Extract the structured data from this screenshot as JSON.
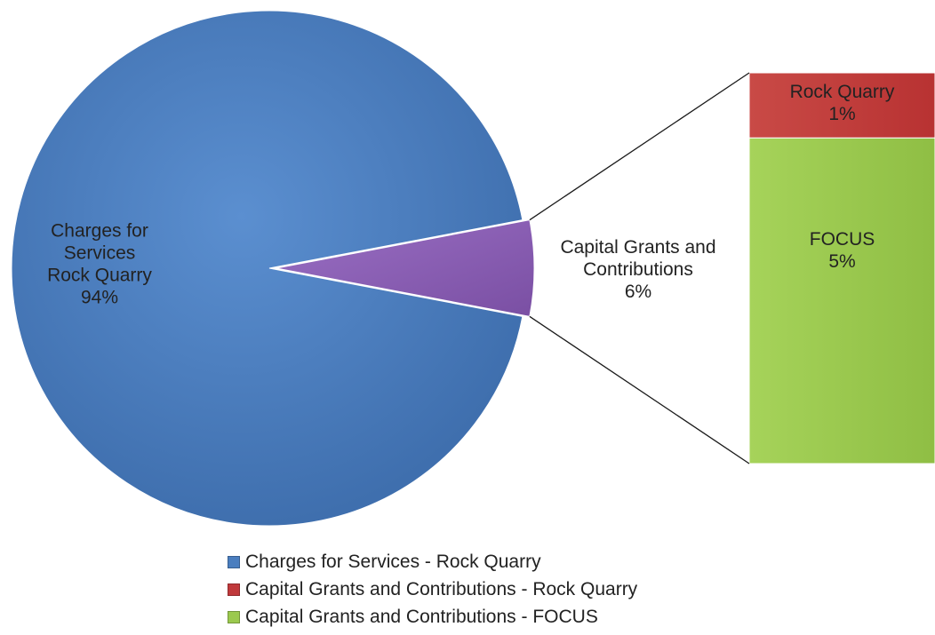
{
  "chart_data": {
    "type": "bar-of-pie",
    "pie": {
      "slices": [
        {
          "name": "Charges for Services Rock Quarry",
          "label_lines": [
            "Charges for",
            "Services",
            "Rock Quarry",
            "94%"
          ],
          "value": 94,
          "color": "#4a7ebf"
        },
        {
          "name": "Capital Grants and Contributions",
          "label_lines": [
            "Capital Grants and",
            "Contributions",
            "6%"
          ],
          "value": 6,
          "color": "#8a5fb3"
        }
      ]
    },
    "bar": {
      "segments": [
        {
          "name": "Rock Quarry",
          "label_lines": [
            "Rock Quarry",
            "1%"
          ],
          "value": 1,
          "color": "#c0393b"
        },
        {
          "name": "FOCUS",
          "label_lines": [
            "FOCUS",
            "5%"
          ],
          "value": 5,
          "color": "#9bc94e"
        }
      ]
    },
    "legend": {
      "position": "bottom",
      "items": [
        {
          "label": "Charges for Services - Rock Quarry",
          "color": "#4a7ebf"
        },
        {
          "label": "Capital Grants and Contributions - Rock Quarry",
          "color": "#c0393b"
        },
        {
          "label": "Capital Grants and Contributions  - FOCUS",
          "color": "#9bc94e"
        }
      ]
    }
  }
}
